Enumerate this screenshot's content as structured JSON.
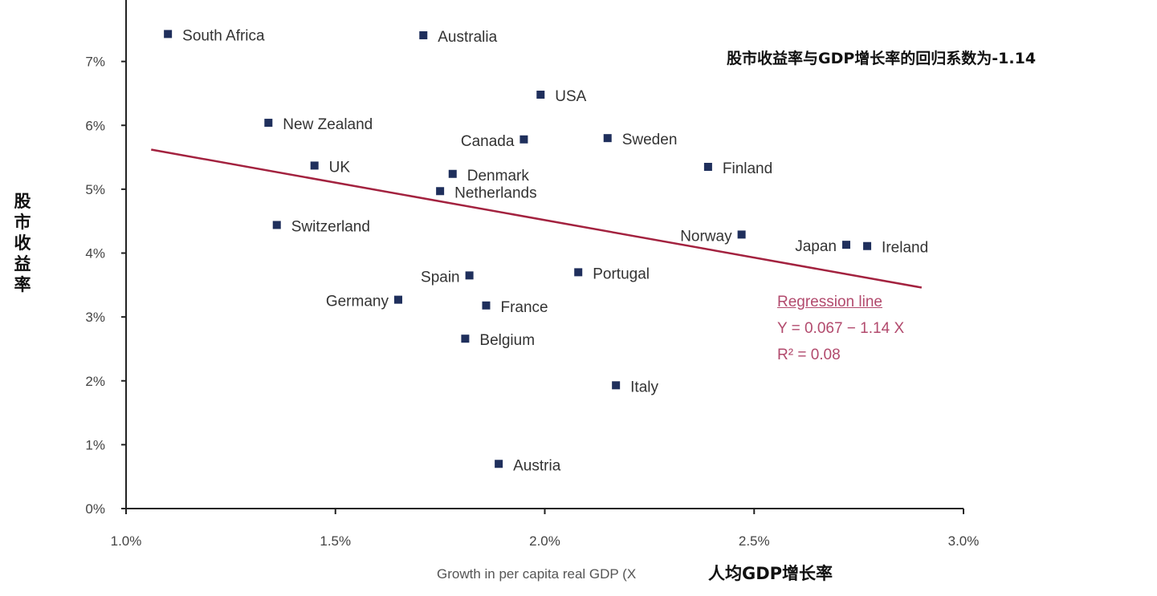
{
  "chart_data": {
    "type": "scatter",
    "title": "",
    "ylabel": "股市收益率",
    "xlabel": "Growth in per capita real GDP (X",
    "xlabel_cn": "人均GDP增长率",
    "annotation": "股市收益率与GDP增长率的回归系数为-1.14",
    "xlim": [
      1.0,
      3.0
    ],
    "ylim": [
      0,
      8
    ],
    "xticks": [
      "1.0%",
      "1.5%",
      "2.0%",
      "2.5%",
      "3.0%"
    ],
    "yticks": [
      "0%",
      "1%",
      "2%",
      "3%",
      "4%",
      "5%",
      "6%",
      "7%"
    ],
    "grid": false,
    "colors": {
      "points": "#1f2f5c",
      "regression": "#a3223f",
      "regression_text": "#b24a6d"
    },
    "points": [
      {
        "label": "South Africa",
        "x": 1.1,
        "y": 7.43
      },
      {
        "label": "Australia",
        "x": 1.71,
        "y": 7.41
      },
      {
        "label": "USA",
        "x": 1.99,
        "y": 6.48
      },
      {
        "label": "New Zealand",
        "x": 1.34,
        "y": 6.04
      },
      {
        "label": "Canada",
        "x": 1.95,
        "y": 5.78
      },
      {
        "label": "Sweden",
        "x": 2.15,
        "y": 5.8
      },
      {
        "label": "UK",
        "x": 1.45,
        "y": 5.37
      },
      {
        "label": "Finland",
        "x": 2.39,
        "y": 5.35
      },
      {
        "label": "Denmark",
        "x": 1.78,
        "y": 5.24
      },
      {
        "label": "Netherlands",
        "x": 1.75,
        "y": 4.97
      },
      {
        "label": "Switzerland",
        "x": 1.36,
        "y": 4.44
      },
      {
        "label": "Norway",
        "x": 2.47,
        "y": 4.29
      },
      {
        "label": "Japan",
        "x": 2.72,
        "y": 4.13
      },
      {
        "label": "Ireland",
        "x": 2.77,
        "y": 4.11
      },
      {
        "label": "Portugal",
        "x": 2.08,
        "y": 3.7
      },
      {
        "label": "Spain",
        "x": 1.82,
        "y": 3.65
      },
      {
        "label": "Germany",
        "x": 1.65,
        "y": 3.27
      },
      {
        "label": "France",
        "x": 1.86,
        "y": 3.18
      },
      {
        "label": "Belgium",
        "x": 1.81,
        "y": 2.66
      },
      {
        "label": "Italy",
        "x": 2.17,
        "y": 1.93
      },
      {
        "label": "Austria",
        "x": 1.89,
        "y": 0.7
      }
    ],
    "regression": {
      "label": "Regression line",
      "equation": "Y = 0.067 − 1.14 X",
      "r2": "R² = 0.08",
      "x_range": [
        1.06,
        2.9
      ],
      "y_range": [
        5.62,
        3.46
      ]
    }
  }
}
